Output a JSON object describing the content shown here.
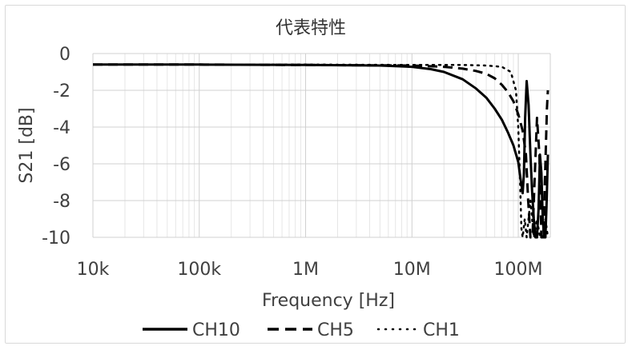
{
  "chart_data": {
    "type": "line",
    "title": "代表特性",
    "xlabel": "Frequency [Hz]",
    "ylabel": "S21 [dB]",
    "xscale": "log",
    "xlim": [
      10000,
      200000000
    ],
    "ylim": [
      -10,
      0
    ],
    "x_ticks": [
      {
        "value": 10000,
        "label": "10k"
      },
      {
        "value": 100000,
        "label": "100k"
      },
      {
        "value": 1000000,
        "label": "1M"
      },
      {
        "value": 10000000,
        "label": "10M"
      },
      {
        "value": 100000000,
        "label": "100M"
      }
    ],
    "y_ticks": [
      {
        "value": 0,
        "label": "0"
      },
      {
        "value": -2,
        "label": "-2"
      },
      {
        "value": -4,
        "label": "-4"
      },
      {
        "value": -6,
        "label": "-6"
      },
      {
        "value": -8,
        "label": "-8"
      },
      {
        "value": -10,
        "label": "-10"
      }
    ],
    "grid": true,
    "legend_position": "bottom",
    "series": [
      {
        "name": "CH10",
        "style": "solid",
        "x": [
          10000,
          100000,
          1000000,
          5000000,
          10000000,
          15000000,
          20000000,
          30000000,
          40000000,
          50000000,
          60000000,
          70000000,
          80000000,
          90000000,
          100000000,
          105000000,
          110000000,
          113000000,
          116000000,
          120000000,
          125000000,
          130000000,
          135000000,
          140000000,
          145000000,
          150000000,
          155000000,
          160000000,
          165000000,
          170000000,
          175000000,
          180000000,
          185000000,
          190000000
        ],
        "y": [
          -0.6,
          -0.6,
          -0.62,
          -0.65,
          -0.72,
          -0.85,
          -1.0,
          -1.4,
          -1.9,
          -2.4,
          -3.0,
          -3.6,
          -4.3,
          -5.0,
          -5.9,
          -6.8,
          -7.6,
          -6.5,
          -3.5,
          -1.5,
          -2.8,
          -5.5,
          -7.5,
          -9.0,
          -10.0,
          -10.0,
          -8.5,
          -5.5,
          -6.5,
          -9.0,
          -10.0,
          -10.0,
          -8.0,
          -5.5
        ]
      },
      {
        "name": "CH5",
        "style": "dash",
        "x": [
          10000,
          100000,
          1000000,
          10000000,
          20000000,
          30000000,
          40000000,
          50000000,
          60000000,
          70000000,
          80000000,
          90000000,
          100000000,
          110000000,
          118000000,
          124000000,
          130000000,
          136000000,
          142000000,
          150000000,
          158000000,
          165000000,
          172000000,
          180000000,
          186000000,
          190000000
        ],
        "y": [
          -0.6,
          -0.6,
          -0.62,
          -0.65,
          -0.72,
          -0.82,
          -0.95,
          -1.1,
          -1.35,
          -1.7,
          -2.1,
          -2.6,
          -3.3,
          -4.2,
          -5.5,
          -8.0,
          -10.0,
          -10.0,
          -7.0,
          -3.5,
          -5.5,
          -10.0,
          -10.0,
          -6.0,
          -3.0,
          -2.0
        ]
      },
      {
        "name": "CH1",
        "style": "dot",
        "x": [
          10000,
          100000,
          1000000,
          10000000,
          30000000,
          50000000,
          70000000,
          85000000,
          95000000,
          100000000,
          104000000,
          107000000,
          110000000,
          115000000,
          120000000,
          130000000,
          140000000,
          150000000,
          160000000,
          170000000,
          180000000,
          190000000
        ],
        "y": [
          -0.6,
          -0.6,
          -0.6,
          -0.62,
          -0.62,
          -0.65,
          -0.72,
          -1.0,
          -2.0,
          -4.0,
          -7.0,
          -9.5,
          -10.0,
          -9.0,
          -10.0,
          -8.0,
          -10.0,
          -9.0,
          -10.0,
          -10.0,
          -9.0,
          -10.0
        ]
      }
    ]
  }
}
